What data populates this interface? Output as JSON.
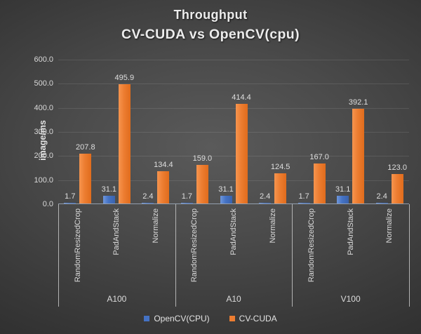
{
  "chart_data": {
    "type": "bar",
    "title": "Throughput",
    "subtitle": "CV-CUDA vs OpenCV(cpu)",
    "ylabel": "image/ms",
    "ylim": [
      0,
      600
    ],
    "yticks": [
      0,
      100,
      200,
      300,
      400,
      500,
      600
    ],
    "ytick_labels": [
      "0.0",
      "100.0",
      "200.0",
      "300.0",
      "400.0",
      "500.0",
      "600.0"
    ],
    "grid": true,
    "legend_position": "bottom",
    "group_labels": [
      "A100",
      "A10",
      "V100"
    ],
    "categories": [
      "RandomResizedCrop",
      "PadAndStack",
      "Normalize"
    ],
    "series": [
      {
        "name": "OpenCV(CPU)",
        "color": "#4472C4",
        "values": [
          1.7,
          31.1,
          2.4,
          1.7,
          31.1,
          2.4,
          1.7,
          31.1,
          2.4
        ]
      },
      {
        "name": "CV-CUDA",
        "color": "#ED7D31",
        "values": [
          207.8,
          495.9,
          134.4,
          159.0,
          414.4,
          124.5,
          167.0,
          392.1,
          123.0
        ]
      }
    ]
  }
}
